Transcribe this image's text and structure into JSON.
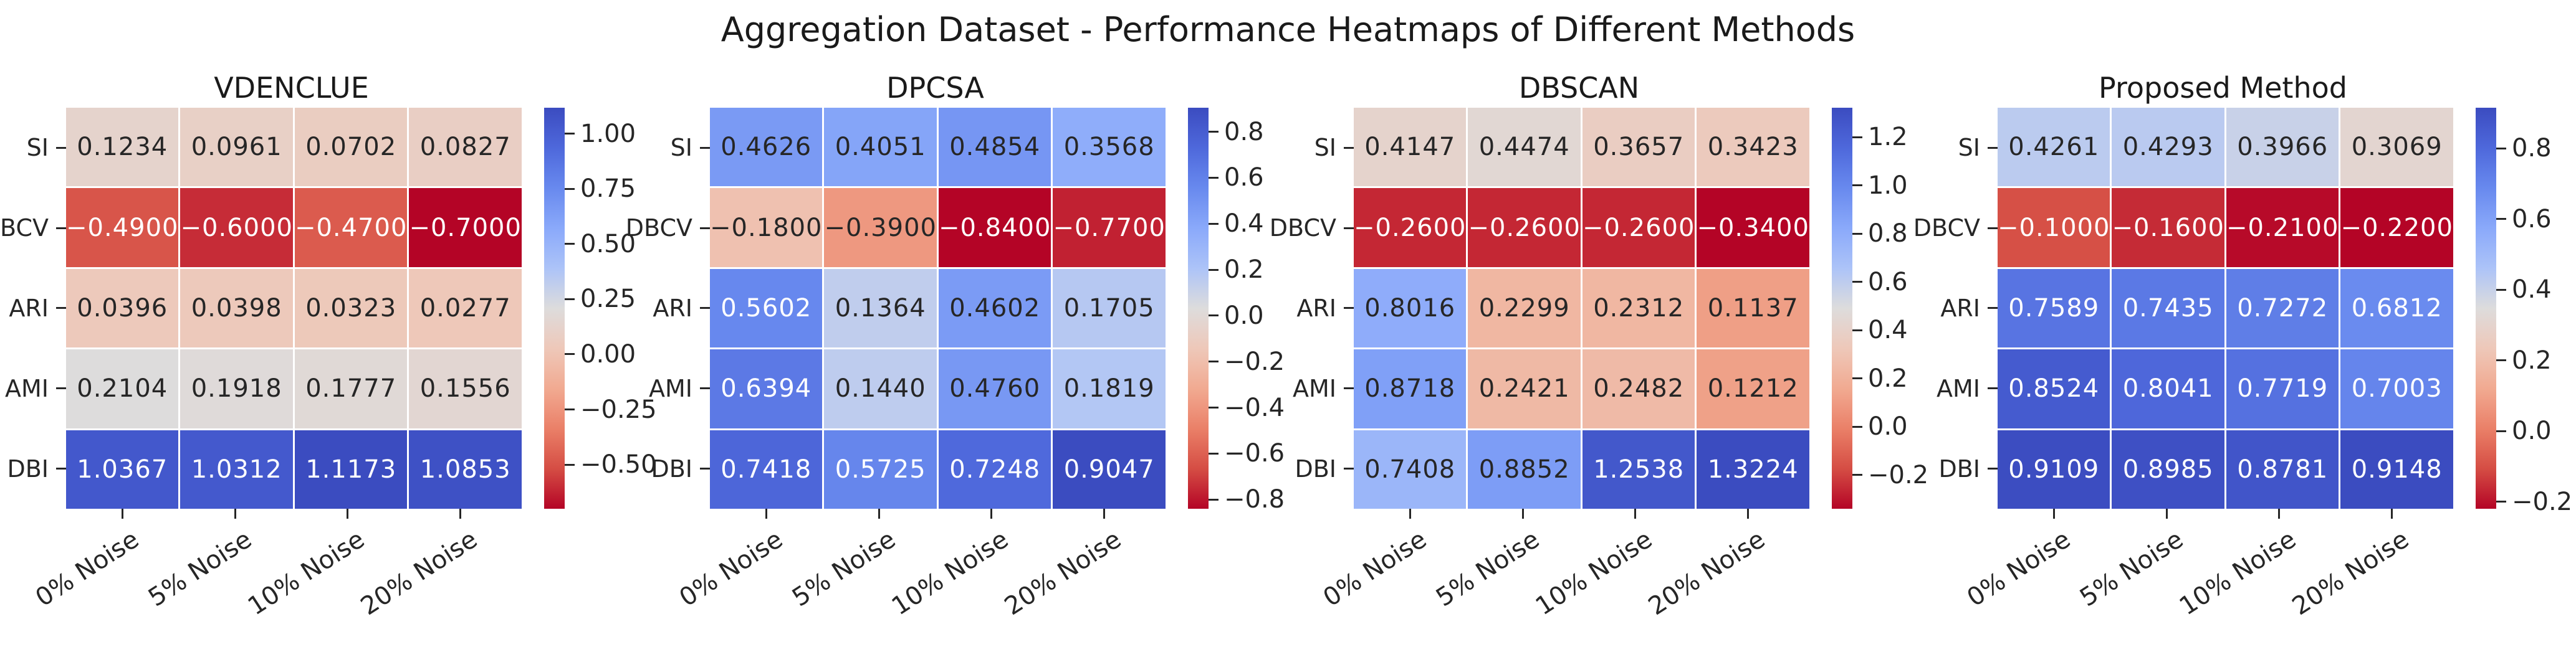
{
  "figure_title": "Aggregation Dataset - Performance Heatmaps of Different Methods",
  "colormap": "coolwarm reversed (high = blue, low = red)",
  "background_color": "#ffffff",
  "text_color": "#262626",
  "chart_data": [
    {
      "type": "heatmap",
      "title": "VDENCLUE",
      "rows": [
        "SI",
        "DBCV",
        "ARI",
        "AMI",
        "DBI"
      ],
      "columns": [
        "0% Noise",
        "5% Noise",
        "10% Noise",
        "20% Noise"
      ],
      "values": [
        [
          0.1234,
          0.0961,
          0.0702,
          0.0827
        ],
        [
          -0.49,
          -0.6,
          -0.47,
          -0.7
        ],
        [
          0.0396,
          0.0398,
          0.0323,
          0.0277
        ],
        [
          0.2104,
          0.1918,
          0.1777,
          0.1556
        ],
        [
          1.0367,
          1.0312,
          1.1173,
          1.0853
        ]
      ],
      "vmin": -0.7,
      "vmax": 1.1173,
      "colorbar_ticks": [
        "1.00",
        "0.75",
        "0.50",
        "0.25",
        "0.00",
        "−0.25",
        "−0.50"
      ],
      "colorbar_tick_values": [
        1.0,
        0.75,
        0.5,
        0.25,
        0.0,
        -0.25,
        -0.5
      ]
    },
    {
      "type": "heatmap",
      "title": "DPCSA",
      "rows": [
        "SI",
        "DBCV",
        "ARI",
        "AMI",
        "DBI"
      ],
      "columns": [
        "0% Noise",
        "5% Noise",
        "10% Noise",
        "20% Noise"
      ],
      "values": [
        [
          0.4626,
          0.4051,
          0.4854,
          0.3568
        ],
        [
          -0.18,
          -0.39,
          -0.84,
          -0.77
        ],
        [
          0.5602,
          0.1364,
          0.4602,
          0.1705
        ],
        [
          0.6394,
          0.144,
          0.476,
          0.1819
        ],
        [
          0.7418,
          0.5725,
          0.7248,
          0.9047
        ]
      ],
      "vmin": -0.84,
      "vmax": 0.9047,
      "colorbar_ticks": [
        "0.8",
        "0.6",
        "0.4",
        "0.2",
        "0.0",
        "−0.2",
        "−0.4",
        "−0.6",
        "−0.8"
      ],
      "colorbar_tick_values": [
        0.8,
        0.6,
        0.4,
        0.2,
        0.0,
        -0.2,
        -0.4,
        -0.6,
        -0.8
      ]
    },
    {
      "type": "heatmap",
      "title": "DBSCAN",
      "rows": [
        "SI",
        "DBCV",
        "ARI",
        "AMI",
        "DBI"
      ],
      "columns": [
        "0% Noise",
        "5% Noise",
        "10% Noise",
        "20% Noise"
      ],
      "values": [
        [
          0.4147,
          0.4474,
          0.3657,
          0.3423
        ],
        [
          -0.26,
          -0.26,
          -0.26,
          -0.34
        ],
        [
          0.8016,
          0.2299,
          0.2312,
          0.1137
        ],
        [
          0.8718,
          0.2421,
          0.2482,
          0.1212
        ],
        [
          0.7408,
          0.8852,
          1.2538,
          1.3224
        ]
      ],
      "vmin": -0.34,
      "vmax": 1.3224,
      "colorbar_ticks": [
        "1.2",
        "1.0",
        "0.8",
        "0.6",
        "0.4",
        "0.2",
        "0.0",
        "−0.2"
      ],
      "colorbar_tick_values": [
        1.2,
        1.0,
        0.8,
        0.6,
        0.4,
        0.2,
        0.0,
        -0.2
      ]
    },
    {
      "type": "heatmap",
      "title": "Proposed Method",
      "rows": [
        "SI",
        "DBCV",
        "ARI",
        "AMI",
        "DBI"
      ],
      "columns": [
        "0% Noise",
        "5% Noise",
        "10% Noise",
        "20% Noise"
      ],
      "values": [
        [
          0.4261,
          0.4293,
          0.3966,
          0.3069
        ],
        [
          -0.1,
          -0.16,
          -0.21,
          -0.22
        ],
        [
          0.7589,
          0.7435,
          0.7272,
          0.6812
        ],
        [
          0.8524,
          0.8041,
          0.7719,
          0.7003
        ],
        [
          0.9109,
          0.8985,
          0.8781,
          0.9148
        ]
      ],
      "vmin": -0.22,
      "vmax": 0.9148,
      "colorbar_ticks": [
        "0.8",
        "0.6",
        "0.4",
        "0.2",
        "0.0",
        "−0.2"
      ],
      "colorbar_tick_values": [
        0.8,
        0.6,
        0.4,
        0.2,
        0.0,
        -0.2
      ]
    }
  ]
}
